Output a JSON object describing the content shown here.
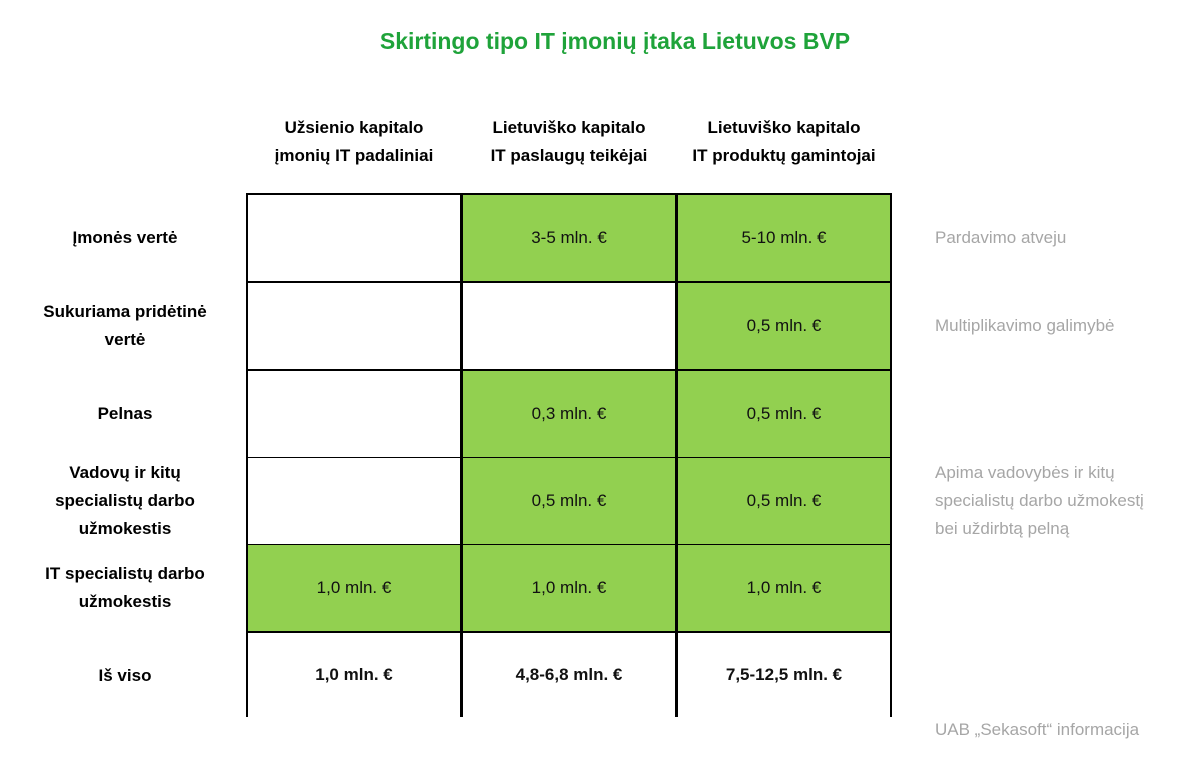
{
  "chart_data": {
    "type": "table",
    "title": "Skirtingo tipo IT įmonių įtaka Lietuvos BVP",
    "columns": [
      [
        "Užsienio kapitalo",
        "įmonių IT padaliniai"
      ],
      [
        "Lietuviško kapitalo",
        "IT paslaugų teikėjai"
      ],
      [
        "Lietuviško kapitalo",
        "IT produktų gamintojai"
      ]
    ],
    "rows": [
      {
        "label": [
          "Įmonės vertė"
        ],
        "cells": [
          {
            "text": "",
            "highlighted": false
          },
          {
            "text": "3-5 mln. €",
            "highlighted": true
          },
          {
            "text": "5-10 mln. €",
            "highlighted": true
          }
        ],
        "note": [
          "Pardavimo atveju"
        ]
      },
      {
        "label": [
          "Sukuriama pridėtinė",
          "vertė"
        ],
        "cells": [
          {
            "text": "",
            "highlighted": false
          },
          {
            "text": "",
            "highlighted": false
          },
          {
            "text": "0,5 mln. €",
            "highlighted": true
          }
        ],
        "note": [
          "Multiplikavimo galimybė"
        ]
      },
      {
        "label": [
          "Pelnas"
        ],
        "cells": [
          {
            "text": "",
            "highlighted": false
          },
          {
            "text": "0,3 mln. €",
            "highlighted": true
          },
          {
            "text": "0,5 mln. €",
            "highlighted": true
          }
        ],
        "note": []
      },
      {
        "label": [
          "Vadovų ir kitų",
          "specialistų darbo",
          "užmokestis"
        ],
        "cells": [
          {
            "text": "",
            "highlighted": false
          },
          {
            "text": "0,5 mln. €",
            "highlighted": true
          },
          {
            "text": "0,5 mln. €",
            "highlighted": true
          }
        ],
        "note": [
          "Apima vadovybės ir kitų",
          "specialistų darbo užmokestį",
          "bei uždirbtą pelną"
        ]
      },
      {
        "label": [
          "IT specialistų darbo",
          "užmokestis"
        ],
        "cells": [
          {
            "text": "1,0 mln. €",
            "highlighted": true
          },
          {
            "text": "1,0 mln. €",
            "highlighted": true
          },
          {
            "text": "1,0 mln. €",
            "highlighted": true
          }
        ],
        "note": []
      }
    ],
    "total": {
      "label": "Iš viso",
      "values": [
        "1,0 mln. €",
        "4,8-6,8 mln. €",
        "7,5-12,5 mln. €"
      ]
    },
    "source": "UAB „Sekasoft“ informacija",
    "colors": {
      "highlight": "#92d050",
      "title": "#1fa33a",
      "note": "#a6a6a6"
    }
  }
}
